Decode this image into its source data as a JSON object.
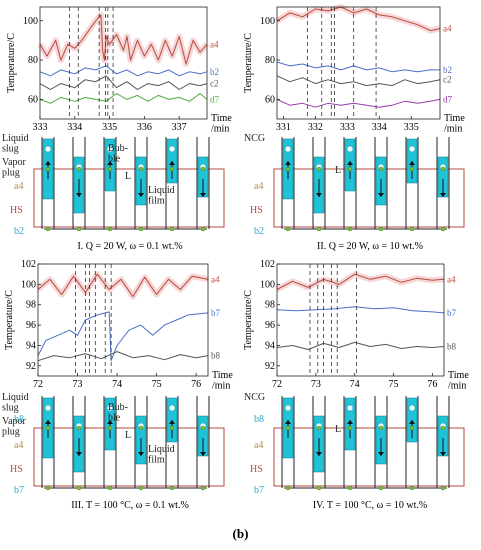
{
  "figure_label": "(b)",
  "chart_data": [
    {
      "type": "line",
      "panel": "I",
      "ylabel": "Temperature/C",
      "xlabel": "Time\n/min",
      "xlim": [
        333,
        337.8
      ],
      "ylim": [
        50,
        107
      ],
      "xticks": [
        333,
        334,
        335,
        336,
        337
      ],
      "yticks": [
        60,
        80,
        100
      ],
      "markers": [
        333.85,
        334.1,
        334.7,
        334.88,
        334.95,
        335.1
      ],
      "series": [
        {
          "name": "a4",
          "color": "#b84a3e",
          "values_x": [
            333,
            333.2,
            333.45,
            333.6,
            333.8,
            334,
            334.2,
            334.4,
            334.6,
            334.75,
            334.8,
            334.85,
            334.9,
            335,
            335.2,
            335.4,
            335.5,
            335.6,
            335.8,
            336,
            336.2,
            336.4,
            336.6,
            336.8,
            337,
            337.2,
            337.4,
            337.6,
            337.8
          ],
          "values_y": [
            88,
            82,
            90,
            80,
            88,
            86,
            90,
            95,
            100,
            103,
            85,
            80,
            92,
            88,
            93,
            85,
            92,
            80,
            90,
            82,
            88,
            80,
            90,
            82,
            92,
            78,
            90,
            84,
            88
          ]
        },
        {
          "name": "b2",
          "color": "#4a6fc8",
          "values_x": [
            333,
            333.3,
            333.6,
            334,
            334.3,
            334.6,
            334.9,
            335.2,
            335.5,
            335.8,
            336.1,
            336.4,
            336.7,
            337,
            337.3,
            337.6,
            337.8
          ],
          "values_y": [
            74,
            72,
            75,
            73,
            76,
            75,
            77,
            73,
            75,
            72,
            74,
            73,
            75,
            72,
            74,
            73,
            74
          ]
        },
        {
          "name": "c2",
          "color": "#555555",
          "values_x": [
            333,
            333.3,
            333.6,
            334,
            334.3,
            334.6,
            334.9,
            335.2,
            335.5,
            335.8,
            336.1,
            336.4,
            336.7,
            337,
            337.3,
            337.6,
            337.8
          ],
          "values_y": [
            68,
            65,
            68,
            66,
            70,
            69,
            72,
            66,
            69,
            65,
            68,
            67,
            69,
            65,
            68,
            67,
            68
          ]
        },
        {
          "name": "d7",
          "color": "#4caf3a",
          "values_x": [
            333,
            333.3,
            333.6,
            334,
            334.3,
            334.6,
            334.9,
            335.2,
            335.5,
            335.8,
            336.1,
            336.4,
            336.7,
            337,
            337.3,
            337.6,
            337.8
          ],
          "values_y": [
            60,
            58,
            61,
            59,
            61,
            60,
            59,
            63,
            60,
            62,
            59,
            62,
            60,
            61,
            59,
            63,
            60
          ]
        }
      ],
      "annotations": [
        "Liquid\nslug",
        "Vapor\nplug",
        "Bub-\nble",
        "L",
        "Liquid\nfilm",
        "a4",
        "HS",
        "b2"
      ],
      "caption": "I. Q = 20 W, ω = 0.1 wt.%"
    },
    {
      "type": "line",
      "panel": "II",
      "ylabel": "Temperature/C",
      "xlabel": "Time\n/min",
      "xlim": [
        330.8,
        335.9
      ],
      "ylim": [
        50,
        107
      ],
      "xticks": [
        331,
        332,
        333,
        334,
        335
      ],
      "yticks": [
        60,
        80,
        100
      ],
      "markers": [
        331.75,
        332.2,
        332.5,
        332.6,
        333.2,
        333.9
      ],
      "series": [
        {
          "name": "a4",
          "color": "#b84a3e",
          "values_x": [
            330.8,
            331.2,
            331.6,
            332,
            332.4,
            332.8,
            333.2,
            333.6,
            334,
            334.4,
            334.8,
            335.2,
            335.6,
            335.9
          ],
          "values_y": [
            100,
            104,
            102,
            106,
            105,
            107,
            104,
            106,
            103,
            102,
            100,
            98,
            95,
            96
          ]
        },
        {
          "name": "b2",
          "color": "#4a6fc8",
          "values_x": [
            330.8,
            331.2,
            331.6,
            332,
            332.4,
            332.8,
            333.2,
            333.6,
            334,
            334.4,
            334.8,
            335.2,
            335.6,
            335.9
          ],
          "values_y": [
            79,
            77,
            78,
            76,
            77,
            75,
            77,
            75,
            76,
            74,
            75,
            74,
            75,
            75
          ]
        },
        {
          "name": "c2",
          "color": "#555555",
          "values_x": [
            330.8,
            331.2,
            331.6,
            332,
            332.4,
            332.8,
            333.2,
            333.6,
            334,
            334.4,
            334.8,
            335.2,
            335.6,
            335.9
          ],
          "values_y": [
            72,
            69,
            71,
            68,
            70,
            68,
            69,
            67,
            68,
            67,
            70,
            68,
            69,
            70
          ]
        },
        {
          "name": "d7",
          "color": "#9a3ab0",
          "values_x": [
            330.8,
            331.2,
            331.6,
            332,
            332.4,
            332.8,
            333.2,
            333.6,
            334,
            334.4,
            334.8,
            335.2,
            335.6,
            335.9
          ],
          "values_y": [
            60,
            57,
            58,
            56,
            58,
            57,
            58,
            57,
            56,
            57,
            59,
            58,
            59,
            60
          ]
        }
      ],
      "annotations": [
        "NCG",
        "L",
        "a4",
        "HS",
        "b2"
      ],
      "caption": "II. Q = 20 W, ω = 10 wt.%"
    },
    {
      "type": "line",
      "panel": "III",
      "ylabel": "Temperature/C",
      "xlabel": "Time\n/min",
      "xlim": [
        72,
        76.3
      ],
      "ylim": [
        91,
        102
      ],
      "xticks": [
        72,
        73,
        74,
        75,
        76
      ],
      "yticks": [
        92,
        94,
        96,
        98,
        100,
        102
      ],
      "markers": [
        72.95,
        73.2,
        73.3,
        73.45,
        73.7,
        73.85
      ],
      "series": [
        {
          "name": "a4",
          "color": "#b84a3e",
          "values_x": [
            72,
            72.3,
            72.6,
            72.9,
            73.2,
            73.5,
            73.8,
            74.1,
            74.4,
            74.7,
            75,
            75.3,
            75.6,
            75.9,
            76.3
          ],
          "values_y": [
            99.5,
            100.5,
            99,
            100.8,
            99.2,
            101,
            99.5,
            100.5,
            98.8,
            100.7,
            99,
            100.5,
            99.5,
            100.8,
            100.5
          ]
        },
        {
          "name": "b7",
          "color": "#4a6fc8",
          "values_x": [
            72,
            72.2,
            72.5,
            72.8,
            73,
            73.2,
            73.5,
            73.8,
            73.85,
            74,
            74.3,
            74.6,
            74.9,
            75.2,
            75.5,
            75.8,
            76.3
          ],
          "values_y": [
            93,
            94.5,
            95,
            95.5,
            95,
            96.5,
            97,
            97.3,
            92.5,
            94,
            95.5,
            96,
            95,
            96,
            96.5,
            97,
            97.2
          ]
        },
        {
          "name": "b8",
          "color": "#555555",
          "values_x": [
            72,
            72.4,
            72.8,
            73.2,
            73.6,
            74,
            74.4,
            74.8,
            75.2,
            75.6,
            76,
            76.3
          ],
          "values_y": [
            92.5,
            93,
            92.8,
            93.2,
            92.7,
            93.4,
            92.8,
            93,
            92.6,
            93.1,
            92.8,
            93
          ]
        }
      ],
      "annotations": [
        "Liquid\nslug",
        "Vapor\nplug",
        "Bub-\nble",
        "L",
        "Liquid\nfilm",
        "a4",
        "HS",
        "b8",
        "b7"
      ],
      "caption": "III. T = 100 °C, ω = 0.1 wt.%"
    },
    {
      "type": "line",
      "panel": "IV",
      "ylabel": "Temperature/C",
      "xlabel": "Time\n/min",
      "xlim": [
        72,
        76.3
      ],
      "ylim": [
        91,
        102
      ],
      "xticks": [
        72,
        73,
        74,
        75,
        76
      ],
      "yticks": [
        92,
        94,
        96,
        98,
        100,
        102
      ],
      "markers": [
        72.85,
        73.05,
        73.2,
        73.4,
        73.55,
        74.05
      ],
      "series": [
        {
          "name": "a4",
          "color": "#b84a3e",
          "values_x": [
            72,
            72.4,
            72.8,
            73.2,
            73.6,
            74,
            74.4,
            74.8,
            75.2,
            75.6,
            76,
            76.3
          ],
          "values_y": [
            99.5,
            100.3,
            99.7,
            100.5,
            100,
            101,
            100.5,
            100.8,
            100.2,
            100.6,
            100.4,
            100.5
          ]
        },
        {
          "name": "b7",
          "color": "#4a6fc8",
          "values_x": [
            72,
            72.5,
            73,
            73.5,
            74,
            74.5,
            75,
            75.5,
            76,
            76.3
          ],
          "values_y": [
            97.5,
            97.4,
            97.5,
            97.6,
            97.8,
            97.6,
            97.7,
            97.4,
            97.3,
            97.2
          ]
        },
        {
          "name": "b8",
          "color": "#555555",
          "values_x": [
            72,
            72.4,
            72.8,
            73.2,
            73.6,
            74,
            74.4,
            74.8,
            75.2,
            75.6,
            76,
            76.3
          ],
          "values_y": [
            93.8,
            94,
            93.6,
            94.2,
            93.8,
            94.3,
            93.9,
            94.1,
            93.7,
            93.9,
            93.8,
            93.9
          ]
        }
      ],
      "annotations": [
        "NCG",
        "L",
        "a4",
        "HS",
        "b8",
        "b7"
      ],
      "caption": "IV. T = 100 °C, ω = 10 wt.%"
    }
  ]
}
